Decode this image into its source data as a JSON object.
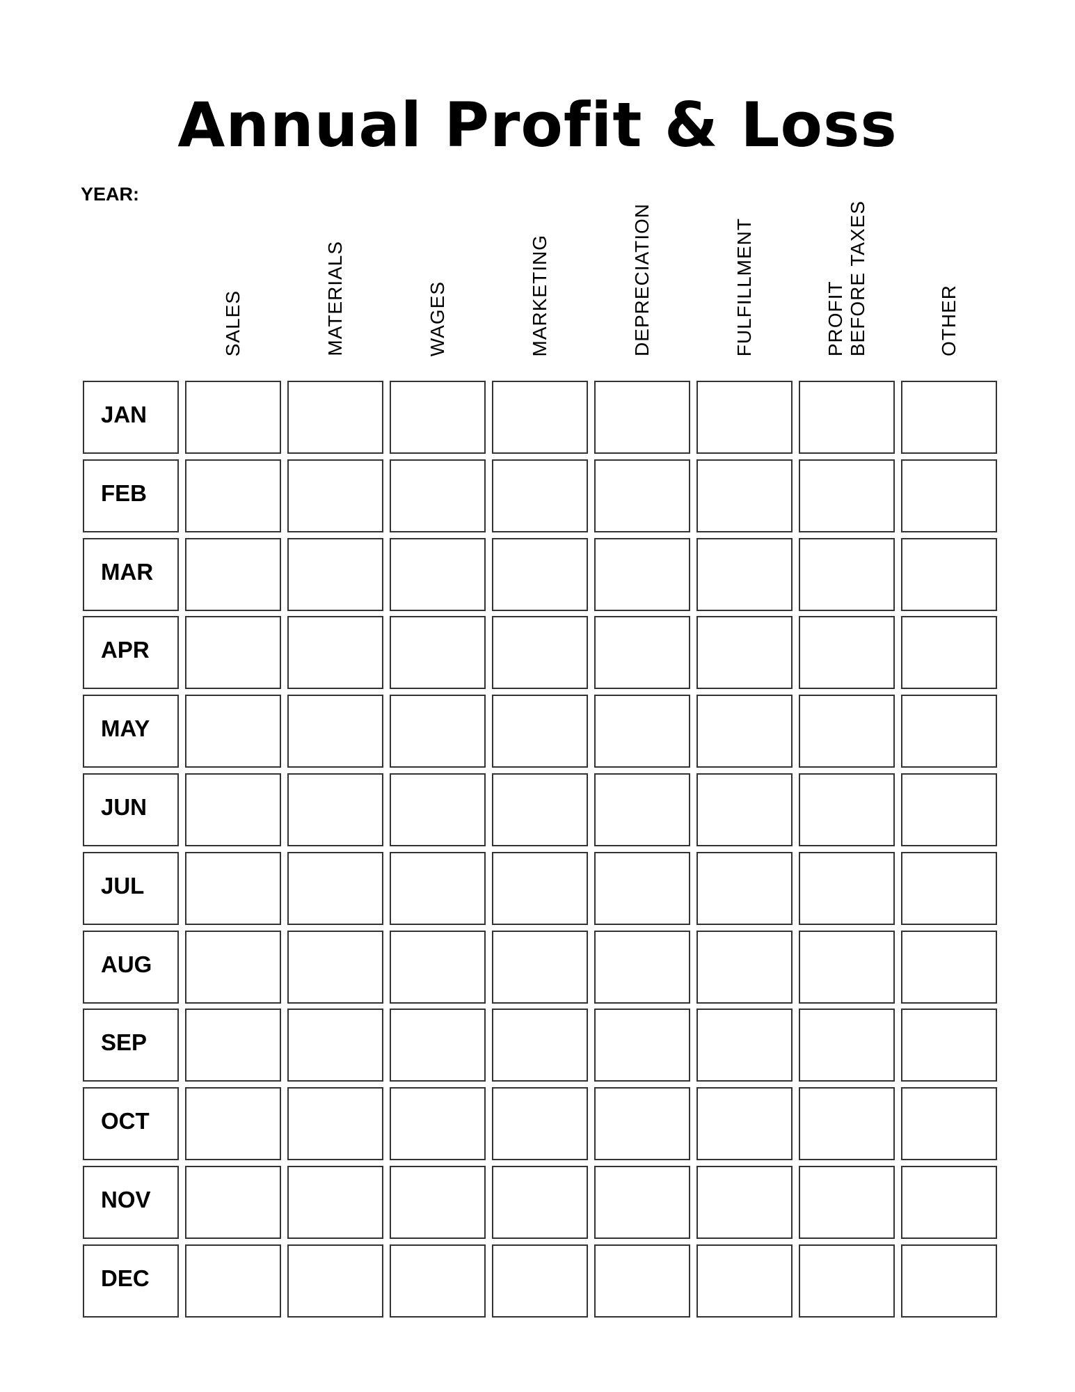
{
  "title": "Annual Profit & Loss",
  "year_label": "YEAR:",
  "columns": [
    "SALES",
    "MATERIALS",
    "WAGES",
    "MARKETING",
    "DEPRECIATION",
    "FULFILLMENT",
    "PROFIT\nBEFORE TAXES",
    "OTHER"
  ],
  "months": [
    "JAN",
    "FEB",
    "MAR",
    "APR",
    "MAY",
    "JUN",
    "JUL",
    "AUG",
    "SEP",
    "OCT",
    "NOV",
    "DEC"
  ]
}
